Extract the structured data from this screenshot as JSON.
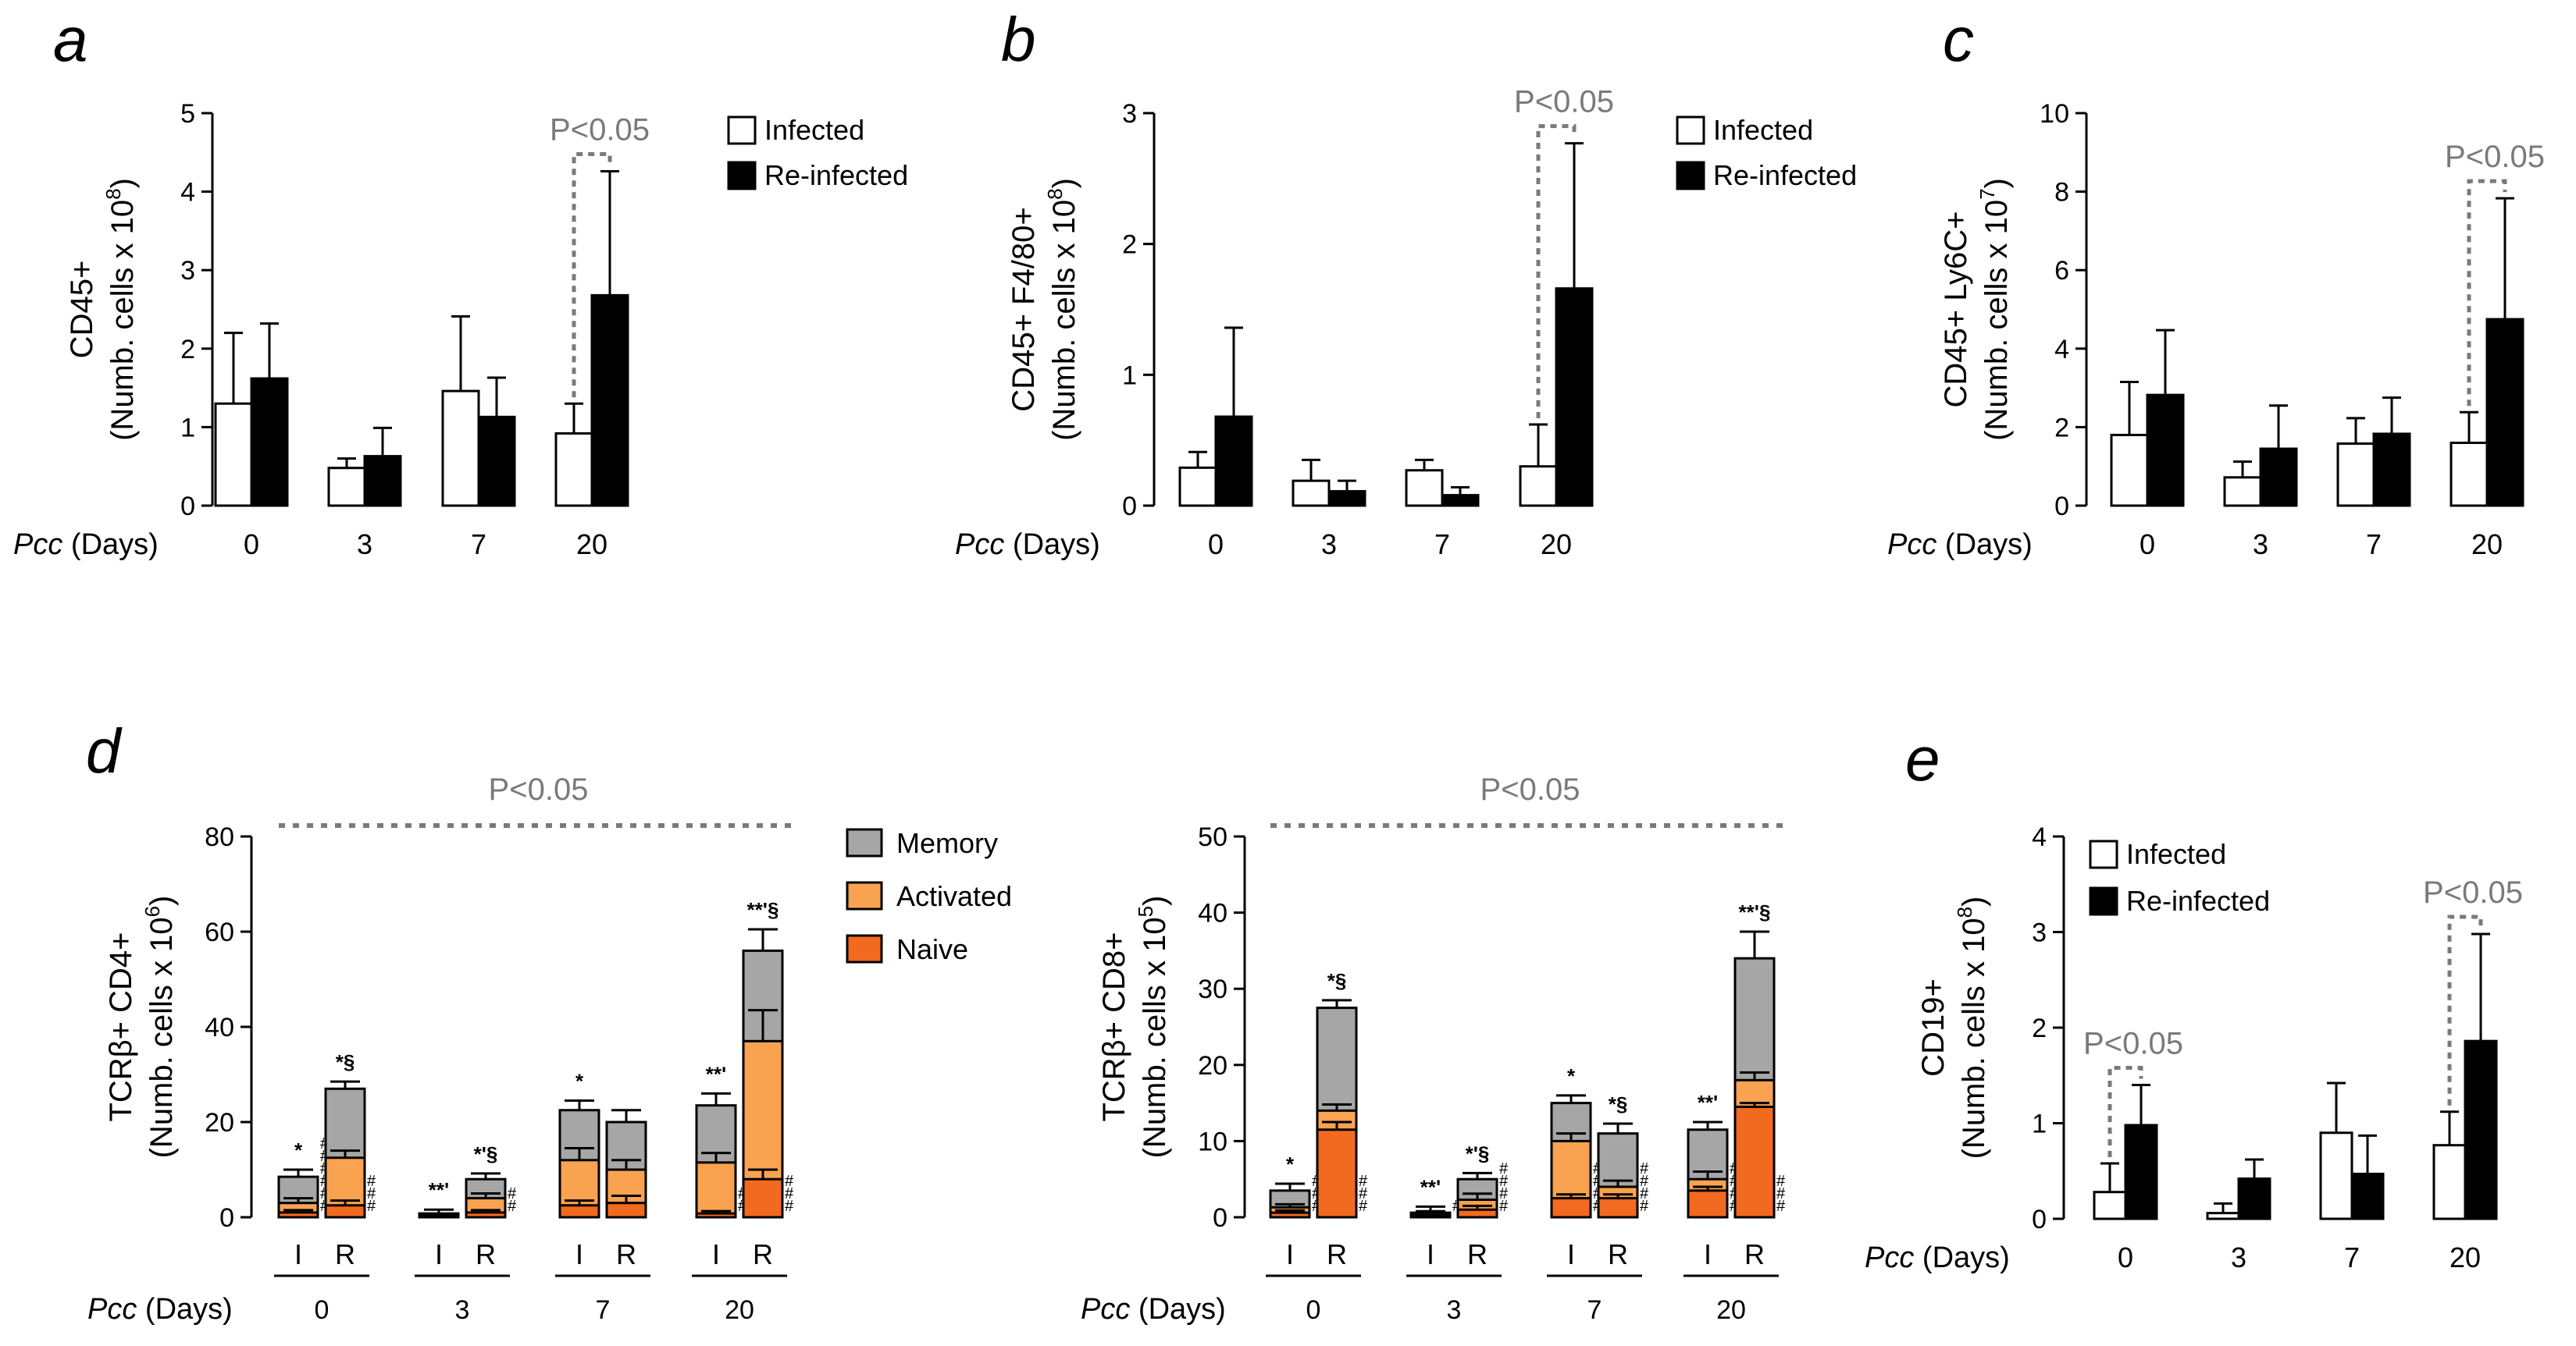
{
  "colors": {
    "infected": "#ffffff",
    "reinfected": "#000000",
    "memory": "#a6a6a6",
    "activated": "#f9a24f",
    "naive": "#f26a1f",
    "pval": "#7a7a7a",
    "axis": "#000000"
  },
  "legend_common": {
    "infected": "Infected",
    "reinfected": "Re-infected"
  },
  "legend_stack": {
    "memory": "Memory",
    "activated": "Activated",
    "naive": "Naive"
  },
  "pcc_label": {
    "italic": "Pcc",
    "rest": " (Days)"
  },
  "pval_text": "P<0.05",
  "chart_data": [
    {
      "id": "a",
      "letter": "a",
      "type": "bar",
      "ylabel1": "CD45+",
      "ylabel2": "(Numb. cells x 10",
      "ylabel_exp": "8",
      "ylabel_close": ")",
      "ylim": [
        0,
        5
      ],
      "yticks": [
        0,
        1,
        2,
        3,
        4,
        5
      ],
      "categories": [
        "0",
        "3",
        "7",
        "20"
      ],
      "series": [
        {
          "name": "Infected",
          "values": [
            1.3,
            0.48,
            1.46,
            0.92
          ],
          "errors": [
            0.9,
            0.12,
            0.95,
            0.38
          ]
        },
        {
          "name": "Re-infected",
          "values": [
            1.62,
            0.63,
            1.13,
            2.68
          ],
          "errors": [
            0.7,
            0.36,
            0.5,
            1.58
          ]
        }
      ],
      "annotations": [
        {
          "text": "P<0.05",
          "category": "20"
        }
      ]
    },
    {
      "id": "b",
      "letter": "b",
      "type": "bar",
      "ylabel1": "CD45+ F4/80+",
      "ylabel2": "(Numb. cells x 10",
      "ylabel_exp": "8",
      "ylabel_close": ")",
      "ylim": [
        0,
        3
      ],
      "yticks": [
        0,
        1,
        2,
        3
      ],
      "categories": [
        "0",
        "3",
        "7",
        "20"
      ],
      "series": [
        {
          "name": "Infected",
          "values": [
            0.29,
            0.19,
            0.27,
            0.3
          ],
          "errors": [
            0.12,
            0.16,
            0.08,
            0.32
          ]
        },
        {
          "name": "Re-infected",
          "values": [
            0.68,
            0.11,
            0.08,
            1.66
          ],
          "errors": [
            0.68,
            0.08,
            0.06,
            1.11
          ]
        }
      ],
      "annotations": [
        {
          "text": "P<0.05",
          "category": "20"
        }
      ]
    },
    {
      "id": "c",
      "letter": "c",
      "type": "bar",
      "ylabel1": "CD45+ Ly6C+",
      "ylabel2": "(Numb. cells x 10",
      "ylabel_exp": "7",
      "ylabel_close": ")",
      "ylim": [
        0,
        10
      ],
      "yticks": [
        0,
        2,
        4,
        6,
        8,
        10
      ],
      "categories": [
        "0",
        "3",
        "7",
        "20"
      ],
      "series": [
        {
          "name": "Infected",
          "values": [
            1.8,
            0.72,
            1.58,
            1.6
          ],
          "errors": [
            1.35,
            0.4,
            0.65,
            0.78
          ]
        },
        {
          "name": "Re-infected",
          "values": [
            2.82,
            1.45,
            1.83,
            4.75
          ],
          "errors": [
            1.65,
            1.1,
            0.92,
            3.08
          ]
        }
      ],
      "annotations": [
        {
          "text": "P<0.05",
          "category": "20"
        }
      ]
    },
    {
      "id": "d1",
      "letter": "d",
      "type": "bar",
      "ylabel1": "TCRβ+ CD4+",
      "ylabel2": "(Numb. cells x 10",
      "ylabel_exp": "6",
      "ylabel_close": ")",
      "ylim": [
        0,
        80
      ],
      "yticks": [
        0,
        20,
        40,
        60,
        80
      ],
      "categories": [
        "0",
        "3",
        "7",
        "20"
      ],
      "subcategories": [
        "I",
        "R"
      ],
      "stack": [
        "Naive",
        "Activated",
        "Memory"
      ],
      "bars": [
        {
          "group": "0",
          "sub": "I",
          "naive": 1.0,
          "activated": 3.0,
          "memory": 8.5,
          "errors": [
            0.5,
            1.0,
            1.5
          ],
          "label": "*",
          "hashes": 6
        },
        {
          "group": "0",
          "sub": "R",
          "naive": 2.5,
          "activated": 12.5,
          "memory": 27.0,
          "errors": [
            1.0,
            1.5,
            1.5
          ],
          "label": "*§",
          "hashes": 3
        },
        {
          "group": "3",
          "sub": "I",
          "naive": 0.2,
          "activated": 0.4,
          "memory": 0.8,
          "errors": [
            0.2,
            0.3,
            0.8
          ],
          "label": "**'",
          "hashes": 0
        },
        {
          "group": "3",
          "sub": "R",
          "naive": 1.0,
          "activated": 4.0,
          "memory": 8.0,
          "errors": [
            0.5,
            1.0,
            1.2
          ],
          "label": "*'§",
          "hashes": 2
        },
        {
          "group": "7",
          "sub": "I",
          "naive": 2.5,
          "activated": 12.0,
          "memory": 22.5,
          "errors": [
            1.0,
            2.5,
            2.0
          ],
          "label": "*",
          "hashes": 0
        },
        {
          "group": "7",
          "sub": "R",
          "naive": 3.0,
          "activated": 10.0,
          "memory": 20.0,
          "errors": [
            1.5,
            2.0,
            2.5
          ],
          "label": "",
          "hashes": 0
        },
        {
          "group": "20",
          "sub": "I",
          "naive": 0.8,
          "activated": 11.5,
          "memory": 23.5,
          "errors": [
            0.5,
            2.0,
            2.5
          ],
          "label": "**'",
          "hashes": 2
        },
        {
          "group": "20",
          "sub": "R",
          "naive": 8.0,
          "activated": 37.0,
          "memory": 56.0,
          "errors": [
            2.0,
            6.5,
            4.5
          ],
          "label": "**'§",
          "hashes": 3
        }
      ],
      "annotations": [
        {
          "text": "P<0.05",
          "span": "all"
        }
      ]
    },
    {
      "id": "d2",
      "letter": "",
      "type": "bar",
      "ylabel1": "TCRβ+ CD8+",
      "ylabel2": "(Numb. cells x 10",
      "ylabel_exp": "5",
      "ylabel_close": ")",
      "ylim": [
        0,
        50
      ],
      "yticks": [
        0,
        10,
        20,
        30,
        40,
        50
      ],
      "categories": [
        "0",
        "3",
        "7",
        "20"
      ],
      "subcategories": [
        "I",
        "R"
      ],
      "stack": [
        "Naive",
        "Activated",
        "Memory"
      ],
      "bars": [
        {
          "group": "0",
          "sub": "I",
          "naive": 0.6,
          "activated": 1.3,
          "memory": 3.5,
          "errors": [
            0.3,
            0.4,
            0.9
          ],
          "label": "*",
          "hashes": 3
        },
        {
          "group": "0",
          "sub": "R",
          "naive": 11.5,
          "activated": 14.0,
          "memory": 27.5,
          "errors": [
            1.0,
            0.8,
            1.0
          ],
          "label": "*§",
          "hashes": 3
        },
        {
          "group": "3",
          "sub": "I",
          "naive": 0.1,
          "activated": 0.3,
          "memory": 0.6,
          "errors": [
            0.5,
            0.5,
            0.8
          ],
          "label": "**'",
          "hashes": 1
        },
        {
          "group": "3",
          "sub": "R",
          "naive": 1.0,
          "activated": 2.3,
          "memory": 5.0,
          "errors": [
            0.5,
            0.8,
            0.8
          ],
          "label": "*'§",
          "hashes": 4
        },
        {
          "group": "7",
          "sub": "I",
          "naive": 2.5,
          "activated": 10.0,
          "memory": 15.0,
          "errors": [
            0.5,
            1.0,
            1.0
          ],
          "label": "*",
          "hashes": 4
        },
        {
          "group": "7",
          "sub": "R",
          "naive": 2.5,
          "activated": 4.0,
          "memory": 11.0,
          "errors": [
            0.5,
            0.8,
            1.3
          ],
          "label": "*§",
          "hashes": 4
        },
        {
          "group": "20",
          "sub": "I",
          "naive": 3.5,
          "activated": 5.0,
          "memory": 11.5,
          "errors": [
            0.5,
            1.0,
            1.0
          ],
          "label": "**'",
          "hashes": 4
        },
        {
          "group": "20",
          "sub": "R",
          "naive": 14.5,
          "activated": 18.0,
          "memory": 34.0,
          "errors": [
            0.5,
            1.0,
            3.5
          ],
          "label": "**'§",
          "hashes": 3
        }
      ],
      "annotations": [
        {
          "text": "P<0.05",
          "span": "all"
        }
      ]
    },
    {
      "id": "e",
      "letter": "e",
      "type": "bar",
      "ylabel1": "CD19+",
      "ylabel2": "(Numb. cells x 10",
      "ylabel_exp": "8",
      "ylabel_close": ")",
      "ylim": [
        0,
        4
      ],
      "yticks": [
        0,
        1,
        2,
        3,
        4
      ],
      "categories": [
        "0",
        "3",
        "7",
        "20"
      ],
      "series": [
        {
          "name": "Infected",
          "values": [
            0.28,
            0.06,
            0.9,
            0.77
          ],
          "errors": [
            0.3,
            0.1,
            0.52,
            0.35
          ]
        },
        {
          "name": "Re-infected",
          "values": [
            0.98,
            0.42,
            0.47,
            1.86
          ],
          "errors": [
            0.42,
            0.2,
            0.4,
            1.12
          ]
        }
      ],
      "annotations": [
        {
          "text": "P<0.05",
          "category": "0"
        },
        {
          "text": "P<0.05",
          "category": "20"
        }
      ]
    }
  ]
}
